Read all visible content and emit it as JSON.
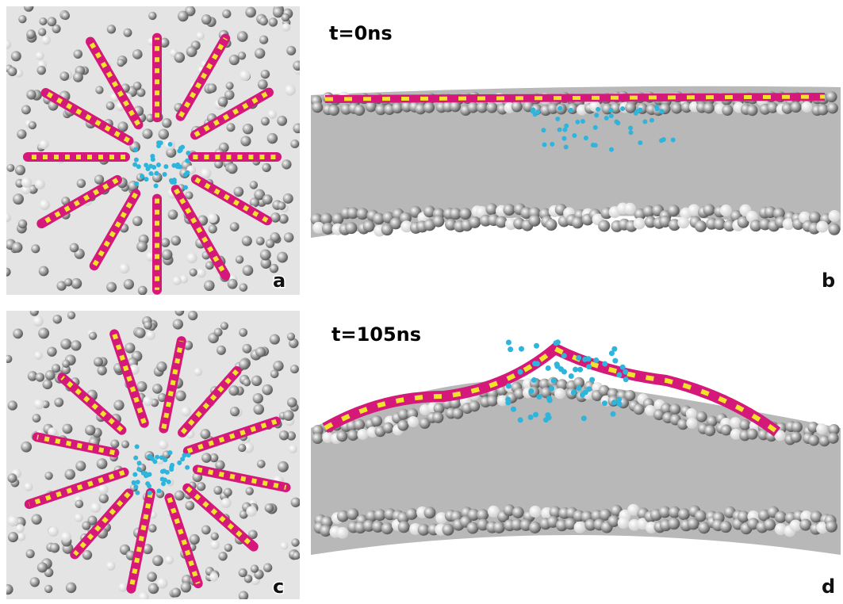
{
  "panels": {
    "a": {
      "label": "a"
    },
    "b": {
      "label": "b",
      "time": "t=0ns"
    },
    "c": {
      "label": "c"
    },
    "d": {
      "label": "d",
      "time": "t=105ns"
    }
  }
}
